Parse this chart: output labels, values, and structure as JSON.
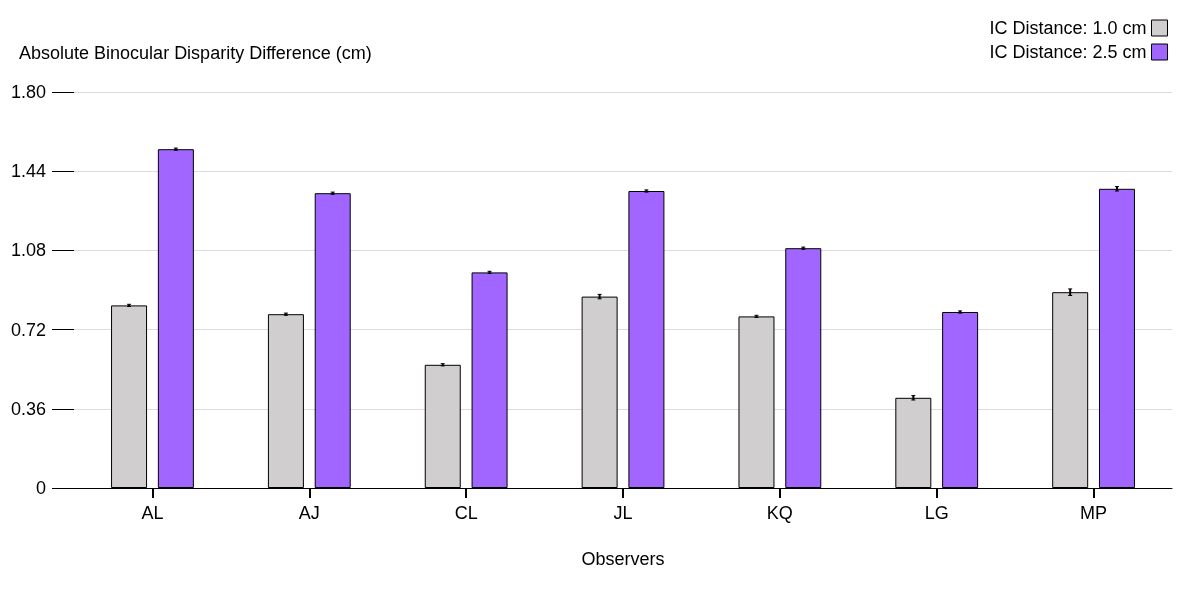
{
  "chart_data": {
    "type": "bar",
    "xlabel": "Observers",
    "ylabel": "Absolute Binocular Disparity Difference (cm)",
    "categories": [
      "AL",
      "AJ",
      "CL",
      "JL",
      "KQ",
      "LG",
      "MP"
    ],
    "series": [
      {
        "name": "IC Distance: 1.0 cm",
        "color": "#d0cece",
        "values": [
          0.83,
          0.79,
          0.56,
          0.87,
          0.78,
          0.41,
          0.89
        ],
        "errors": [
          0.005,
          0.005,
          0.005,
          0.01,
          0.005,
          0.01,
          0.015
        ]
      },
      {
        "name": "IC Distance: 2.5 cm",
        "color": "#a066ff",
        "values": [
          1.54,
          1.34,
          0.98,
          1.35,
          1.09,
          0.8,
          1.36
        ],
        "errors": [
          0.005,
          0.005,
          0.005,
          0.005,
          0.005,
          0.005,
          0.01
        ]
      }
    ],
    "ylim": [
      0,
      1.8
    ],
    "yticks": [
      0,
      0.36,
      0.72,
      1.08,
      1.44,
      {
        "value": 1.8,
        "label": "1.80"
      }
    ],
    "grid": "y",
    "legend": "top right"
  }
}
